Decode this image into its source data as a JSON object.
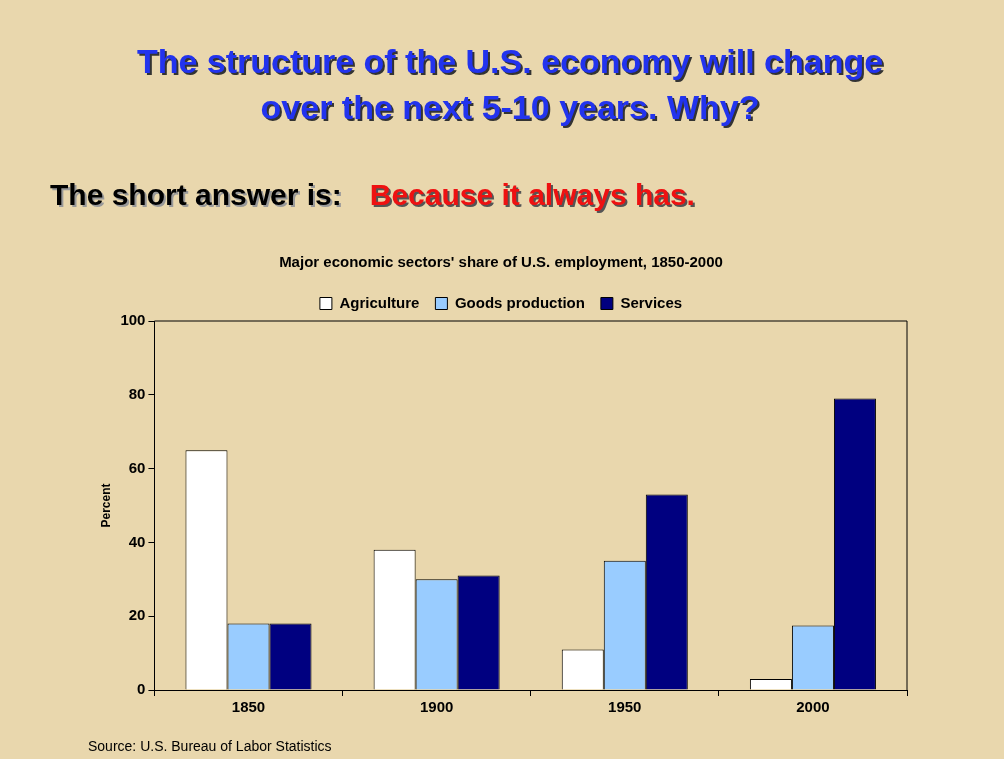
{
  "chart_data": {
    "type": "bar",
    "title": "The structure of the U.S. economy will change over the next 5-10 years. Why?",
    "subtitle": "Major economic sectors' share of U.S. employment, 1850-2000",
    "annotations": [
      "The short answer is:",
      "Because it always has.",
      "Source:  U.S. Bureau of Labor Statistics"
    ],
    "categories": [
      "1850",
      "1900",
      "1950",
      "2000"
    ],
    "series": [
      {
        "name": "Agriculture",
        "color": "#ffffff",
        "values": [
          65,
          38,
          11,
          3
        ]
      },
      {
        "name": "Goods production",
        "color": "#99ccff",
        "values": [
          18,
          30,
          35,
          17.5
        ]
      },
      {
        "name": "Services",
        "color": "#000080",
        "values": [
          18,
          31,
          53,
          79
        ]
      }
    ],
    "ylabel": "Percent",
    "ylim": [
      0,
      100
    ],
    "yticks": [
      0,
      20,
      40,
      60,
      80,
      100
    ],
    "grid": false,
    "legend": "top"
  }
}
